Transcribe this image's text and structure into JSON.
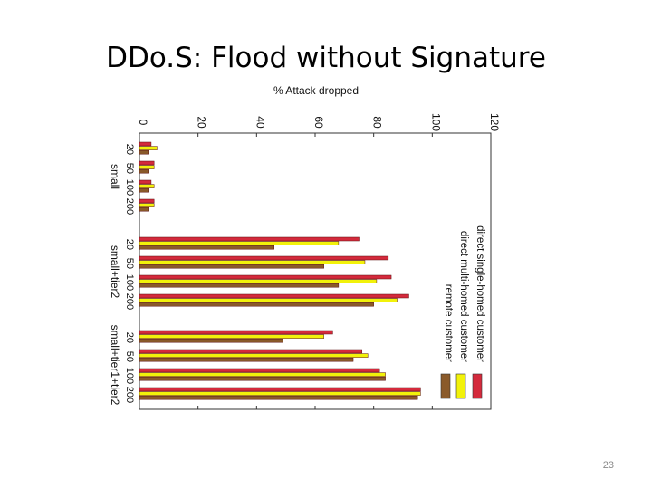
{
  "slide": {
    "title": "DDo.S: Flood without Signature",
    "page_number": "23"
  },
  "chart_data": {
    "type": "bar",
    "orientation": "horizontal",
    "title": "% Attack dropped",
    "xlabel": "% Attack dropped",
    "xlim": [
      0,
      120
    ],
    "x_ticks": [
      0,
      20,
      40,
      60,
      80,
      100,
      120
    ],
    "grid": false,
    "legend_position": "right",
    "groups": [
      {
        "label": "small",
        "categories": [
          "20",
          "50",
          "100",
          "200"
        ]
      },
      {
        "label": "small+tier2",
        "categories": [
          "20",
          "50",
          "100",
          "200"
        ]
      },
      {
        "label": "small+tier1+tier2",
        "categories": [
          "20",
          "50",
          "100",
          "200"
        ]
      }
    ],
    "series": [
      {
        "name": "direct single-homed customer",
        "color": "#d42a3c",
        "values": [
          [
            4,
            5,
            4,
            5
          ],
          [
            75,
            85,
            86,
            92
          ],
          [
            66,
            76,
            82,
            96
          ]
        ]
      },
      {
        "name": "direct multi-homed customer",
        "color": "#f2f20a",
        "values": [
          [
            6,
            5,
            5,
            5
          ],
          [
            68,
            77,
            81,
            88
          ],
          [
            63,
            78,
            84,
            96
          ]
        ]
      },
      {
        "name": "remote customer",
        "color": "#8a5a2a",
        "values": [
          [
            3,
            3,
            3,
            3
          ],
          [
            46,
            63,
            68,
            80
          ],
          [
            49,
            73,
            84,
            95
          ]
        ]
      }
    ]
  }
}
